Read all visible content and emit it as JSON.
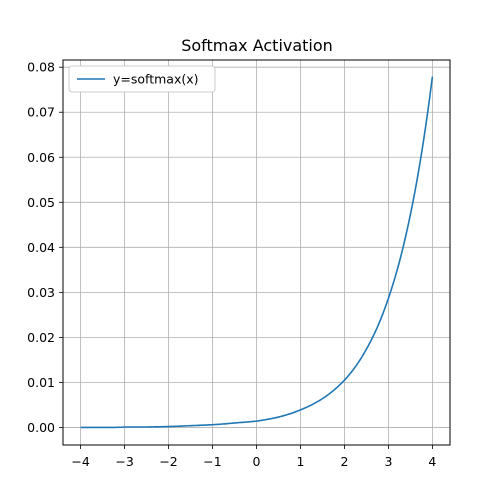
{
  "chart_data": {
    "type": "line",
    "title": "Softmax Activation",
    "xlabel": "",
    "ylabel": "",
    "xlim": [
      -4.4,
      4.4
    ],
    "ylim": [
      -0.0039,
      0.0816
    ],
    "grid": true,
    "legend_position": "top-left",
    "x_ticks": [
      -4,
      -3,
      -2,
      -1,
      0,
      1,
      2,
      3,
      4
    ],
    "x_tick_labels": [
      "−4",
      "−3",
      "−2",
      "−1",
      "0",
      "1",
      "2",
      "3",
      "4"
    ],
    "y_ticks": [
      0.0,
      0.01,
      0.02,
      0.03,
      0.04,
      0.05,
      0.06,
      0.07,
      0.08
    ],
    "y_tick_labels": [
      "0.00",
      "0.01",
      "0.02",
      "0.03",
      "0.04",
      "0.05",
      "0.06",
      "0.07",
      "0.08"
    ],
    "series": [
      {
        "name": "y=softmax(x)",
        "color": "#1f77b4",
        "x": [
          -4,
          -3.5,
          -3,
          -2.5,
          -2,
          -1.5,
          -1,
          -0.5,
          0,
          0.25,
          0.5,
          0.75,
          1,
          1.25,
          1.5,
          1.75,
          2,
          2.25,
          2.5,
          2.75,
          3,
          3.25,
          3.5,
          3.75,
          4
        ],
        "y": [
          0.0,
          0.0,
          0.0001,
          0.0001,
          0.0002,
          0.0004,
          0.0006,
          0.001,
          0.0014,
          0.0018,
          0.0023,
          0.003,
          0.0039,
          0.005,
          0.0064,
          0.0082,
          0.0105,
          0.0135,
          0.0174,
          0.0223,
          0.0287,
          0.0368,
          0.0473,
          0.0607,
          0.0779
        ]
      }
    ]
  }
}
